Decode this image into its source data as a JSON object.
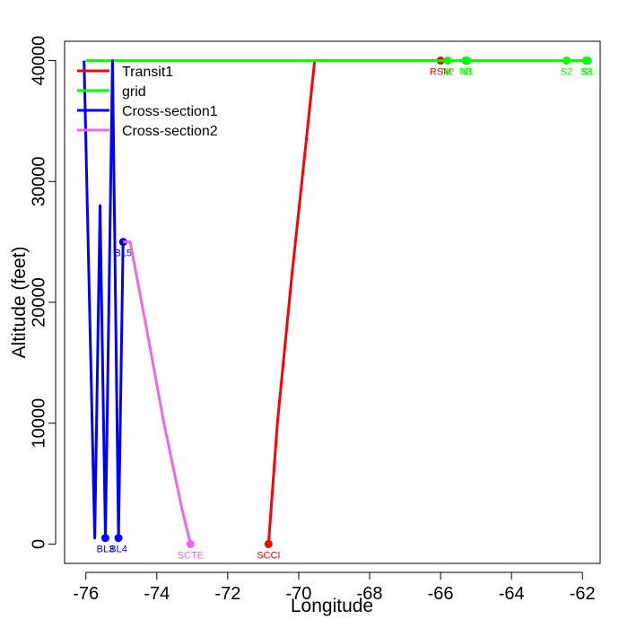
{
  "chart_data": {
    "type": "line",
    "title": "",
    "xlabel": "Longitude",
    "ylabel": "Altitude (feet)",
    "xlim": [
      -76.6,
      -61.5
    ],
    "ylim": [
      -1600,
      41600
    ],
    "x_ticks": [
      -76,
      -74,
      -72,
      -70,
      -68,
      -66,
      -64,
      -62
    ],
    "y_ticks": [
      0,
      10000,
      20000,
      30000,
      40000
    ],
    "grid": false,
    "legend": {
      "placement": "top-left",
      "entries": [
        {
          "label": "Transit1",
          "color": "#ff0000"
        },
        {
          "label": "grid",
          "color": "#00ff00"
        },
        {
          "label": "Cross-section1",
          "color": "#0000ff"
        },
        {
          "label": "Cross-section2",
          "color": "#ee66ee"
        }
      ]
    },
    "series": [
      {
        "name": "Transit1",
        "color": "#ff0000",
        "line": [
          [
            -70.85,
            0
          ],
          [
            -70.6,
            10000
          ],
          [
            -70.2,
            22000
          ],
          [
            -69.8,
            33000
          ],
          [
            -69.55,
            40000
          ],
          [
            -66.0,
            40000
          ]
        ],
        "points": [
          {
            "x": -70.85,
            "y": 0,
            "label": "SCCI"
          },
          {
            "x": -66.0,
            "y": 40000,
            "label": "RSM"
          }
        ]
      },
      {
        "name": "grid",
        "color": "#00ff00",
        "line": [
          [
            -76.0,
            40000
          ],
          [
            -61.85,
            40000
          ]
        ],
        "points": [
          {
            "x": -65.8,
            "y": 40000,
            "label": "N2"
          },
          {
            "x": -65.3,
            "y": 40000,
            "label": "N3"
          },
          {
            "x": -65.25,
            "y": 40000,
            "label": "N1"
          },
          {
            "x": -62.45,
            "y": 40000,
            "label": "S2"
          },
          {
            "x": -61.9,
            "y": 40000,
            "label": "S3"
          },
          {
            "x": -61.85,
            "y": 40000,
            "label": "S1"
          }
        ]
      },
      {
        "name": "Cross-section1",
        "color": "#0000ff",
        "line": [
          [
            -76.05,
            40000
          ],
          [
            -75.75,
            500
          ],
          [
            -75.6,
            28000
          ],
          [
            -75.45,
            500
          ],
          [
            -75.25,
            40000
          ],
          [
            -75.08,
            500
          ],
          [
            -74.95,
            25000
          ]
        ],
        "points": [
          {
            "x": -75.45,
            "y": 500,
            "label": "BL3"
          },
          {
            "x": -75.08,
            "y": 500,
            "label": "BL4"
          },
          {
            "x": -74.95,
            "y": 25000,
            "label": "BL5"
          }
        ]
      },
      {
        "name": "Cross-section2",
        "color": "#ee66ee",
        "line": [
          [
            -74.95,
            25000
          ],
          [
            -74.75,
            25000
          ],
          [
            -74.3,
            18000
          ],
          [
            -73.8,
            10000
          ],
          [
            -73.3,
            3000
          ],
          [
            -73.05,
            0
          ]
        ],
        "points": [
          {
            "x": -73.05,
            "y": 0,
            "label": "SCTE"
          }
        ]
      }
    ]
  }
}
